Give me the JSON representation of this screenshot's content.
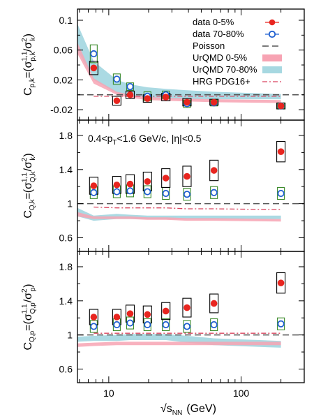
{
  "chart_data": {
    "type": "scatter",
    "x_label": "√s",
    "x_label_sub": "NN",
    "x_label_unit": "(GeV)",
    "x_scale": "log",
    "x_range": [
      5.8,
      300
    ],
    "x_tick_labels": [
      "10",
      "100"
    ],
    "x_ticks": [
      10,
      100
    ],
    "x_minor_ticks": [
      6,
      7,
      8,
      9,
      20,
      30,
      40,
      50,
      60,
      70,
      80,
      90,
      200,
      300
    ],
    "beam_energies": [
      7.7,
      11.5,
      14.5,
      19.6,
      27,
      39,
      62.4,
      200
    ],
    "legend": {
      "position": "top-right",
      "entries": [
        {
          "label": "data 0-5%",
          "series": "data_central"
        },
        {
          "label": "data 70-80%",
          "series": "data_peripheral"
        },
        {
          "label": "Poisson",
          "series": "poisson"
        },
        {
          "label": "UrQMD 0-5%",
          "series": "urqmd_central"
        },
        {
          "label": "UrQMD 70-80%",
          "series": "urqmd_peripheral"
        },
        {
          "label": "HRG PDG16+",
          "series": "hrg"
        }
      ]
    },
    "style": {
      "data_central": "#e8251f",
      "data_peripheral": "#1f5fd0",
      "poisson": "#555555",
      "urqmd_central": "#f7a3b3",
      "urqmd_peripheral": "#a7d8e1",
      "hrg": "#d9455f",
      "sys_central": "#000000",
      "sys_peripheral": "#3a8a2a"
    },
    "panels": [
      {
        "id": "pk",
        "ylabel": "C_p,k=(σ^1,1_p,k/σ^2_k)",
        "ylabel_main": "C",
        "ylabel_sub": "p,k",
        "ylabel_eq": "=(σ",
        "ylabel_sup2": "1,1",
        "ylabel_sub2": "p,k",
        "ylabel_slash": "/σ",
        "ylabel_sup3": "2",
        "ylabel_sub3": "k",
        "ylabel_close": ")",
        "ylim": [
          -0.034,
          0.115
        ],
        "yticks": [
          -0.02,
          0.02,
          0.06,
          0.1
        ],
        "ytick_labels": [
          "-0.02",
          "0.02",
          "0.06",
          "0.1"
        ],
        "poisson": 0,
        "hrg": [
          -0.002,
          -0.002,
          -0.002,
          -0.002,
          -0.002,
          -0.002,
          -0.002,
          -0.002
        ],
        "urqmd_central": {
          "x": [
            5.8,
            7.7,
            11.5,
            14.5,
            19.6,
            27,
            39,
            62.4,
            200
          ],
          "low": [
            0.055,
            0.015,
            0.0,
            -0.004,
            -0.007,
            -0.008,
            -0.009,
            -0.01,
            -0.011
          ],
          "high": [
            0.07,
            0.022,
            0.004,
            0.0,
            -0.003,
            -0.004,
            -0.005,
            -0.006,
            -0.007
          ]
        },
        "urqmd_peripheral": {
          "x": [
            5.8,
            7.7,
            11.5,
            14.5,
            19.6,
            27,
            39,
            62.4,
            200
          ],
          "low": [
            0.06,
            0.02,
            0.002,
            -0.002,
            -0.004,
            -0.006,
            -0.006,
            -0.006,
            -0.006
          ],
          "high": [
            0.095,
            0.045,
            0.02,
            0.014,
            0.01,
            0.008,
            0.006,
            0.004,
            0.001
          ]
        },
        "data_central": {
          "y": [
            0.036,
            -0.008,
            0.0,
            -0.005,
            -0.003,
            -0.01,
            -0.01,
            -0.015
          ],
          "sys": [
            0.009,
            0.006,
            0.005,
            0.005,
            0.005,
            0.005,
            0.004,
            0.004
          ]
        },
        "data_peripheral": {
          "y": [
            0.055,
            0.021,
            0.011,
            -0.002,
            0.0,
            -0.012,
            -0.011,
            -0.015
          ],
          "sys": [
            0.012,
            0.007,
            0.005,
            0.006,
            0.005,
            0.005,
            0.004,
            0.004
          ]
        }
      },
      {
        "id": "Qk",
        "ylabel": "C_Q,k=(σ^1,1_Q,k/σ^2_k)",
        "ylabel_main": "C",
        "ylabel_sub": "Q,k",
        "ylabel_eq": "=(σ",
        "ylabel_sup2": "1,1",
        "ylabel_sub2": "Q,k",
        "ylabel_slash": "/σ",
        "ylabel_sup3": "2",
        "ylabel_sub3": "k",
        "ylabel_close": ")",
        "ylim": [
          0.44,
          1.98
        ],
        "yticks": [
          0.6,
          1.0,
          1.4,
          1.8
        ],
        "ytick_labels": [
          "0.6",
          "1",
          "1.4",
          "1.8"
        ],
        "annotation": "0.4<p_T<1.6 GeV/c, |η|<0.5",
        "annotation_pre": "0.4<p",
        "annotation_sub": "T",
        "annotation_post": "<1.6 GeV/c, |η|<0.5",
        "poisson": 1.0,
        "hrg": [
          0.96,
          0.95,
          0.95,
          0.95,
          0.95,
          0.94,
          0.94,
          0.93
        ],
        "urqmd_central": {
          "x": [
            5.8,
            7.7,
            11.5,
            14.5,
            19.6,
            27,
            39,
            62.4,
            200
          ],
          "low": [
            0.85,
            0.82,
            0.82,
            0.82,
            0.81,
            0.81,
            0.8,
            0.8,
            0.79
          ],
          "high": [
            0.9,
            0.85,
            0.85,
            0.85,
            0.84,
            0.84,
            0.83,
            0.83,
            0.82
          ]
        },
        "urqmd_peripheral": {
          "x": [
            5.8,
            7.7,
            11.5,
            14.5,
            19.6,
            27,
            39,
            62.4,
            200
          ],
          "low": [
            0.85,
            0.8,
            0.82,
            0.82,
            0.82,
            0.82,
            0.82,
            0.82,
            0.82
          ],
          "high": [
            0.95,
            0.86,
            0.88,
            0.87,
            0.86,
            0.86,
            0.86,
            0.86,
            0.86
          ]
        },
        "data_central": {
          "y": [
            1.21,
            1.22,
            1.23,
            1.26,
            1.3,
            1.32,
            1.39,
            1.61
          ],
          "sys": [
            0.1,
            0.1,
            0.11,
            0.11,
            0.11,
            0.12,
            0.12,
            0.12
          ]
        },
        "data_peripheral": {
          "y": [
            1.13,
            1.14,
            1.15,
            1.14,
            1.12,
            1.11,
            1.13,
            1.12
          ],
          "sys": [
            0.07,
            0.07,
            0.07,
            0.07,
            0.07,
            0.07,
            0.07,
            0.07
          ]
        }
      },
      {
        "id": "Qp",
        "ylabel": "C_Q,p=(σ^1,1_Q,p/σ^2_p)",
        "ylabel_main": "C",
        "ylabel_sub": "Q,p",
        "ylabel_eq": "=(σ",
        "ylabel_sup2": "1,1",
        "ylabel_sub2": "Q,p",
        "ylabel_slash": "/σ",
        "ylabel_sup3": "2",
        "ylabel_sub3": "p",
        "ylabel_close": ")",
        "ylim": [
          0.44,
          1.98
        ],
        "yticks": [
          0.6,
          1.0,
          1.4,
          1.8
        ],
        "ytick_labels": [
          "0.6",
          "1",
          "1.4",
          "1.8"
        ],
        "poisson": 1.0,
        "hrg": [
          1.02,
          1.02,
          1.02,
          1.02,
          1.02,
          1.02,
          1.02,
          1.02
        ],
        "urqmd_central": {
          "x": [
            5.8,
            7.7,
            11.5,
            14.5,
            19.6,
            27,
            39,
            62.4,
            200
          ],
          "low": [
            0.86,
            0.87,
            0.88,
            0.88,
            0.88,
            0.88,
            0.88,
            0.88,
            0.88
          ],
          "high": [
            0.9,
            0.91,
            0.92,
            0.92,
            0.92,
            0.92,
            0.92,
            0.92,
            0.92
          ]
        },
        "urqmd_peripheral": {
          "x": [
            5.8,
            7.7,
            11.5,
            14.5,
            19.6,
            27,
            39,
            62.4,
            200
          ],
          "low": [
            0.92,
            0.93,
            0.93,
            0.94,
            0.94,
            0.94,
            0.91,
            0.88,
            0.85
          ],
          "high": [
            0.98,
            0.99,
            1.0,
            1.01,
            1.01,
            1.01,
            0.99,
            0.96,
            0.93
          ]
        },
        "data_central": {
          "y": [
            1.21,
            1.21,
            1.25,
            1.24,
            1.28,
            1.32,
            1.37,
            1.61
          ],
          "sys": [
            0.09,
            0.09,
            0.1,
            0.1,
            0.1,
            0.11,
            0.11,
            0.12
          ]
        },
        "data_peripheral": {
          "y": [
            1.1,
            1.12,
            1.14,
            1.12,
            1.12,
            1.1,
            1.12,
            1.13
          ],
          "sys": [
            0.07,
            0.07,
            0.07,
            0.07,
            0.07,
            0.07,
            0.07,
            0.07
          ]
        }
      }
    ]
  }
}
